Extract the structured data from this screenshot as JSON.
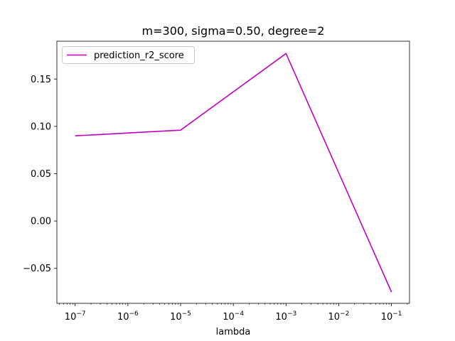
{
  "chart_data": {
    "type": "line",
    "title": "m=300, sigma=0.50, degree=2",
    "xlabel": "lambda",
    "ylabel": "",
    "xscale": "log",
    "x": [
      1e-07,
      1e-05,
      0.001,
      0.1
    ],
    "series": [
      {
        "name": "prediction_r2_score",
        "color": "#bf00bf",
        "values": [
          0.09,
          0.096,
          0.177,
          -0.075
        ]
      }
    ],
    "xlim": [
      4.5e-08,
      0.22
    ],
    "ylim": [
      -0.087,
      0.19
    ],
    "xticks": [
      {
        "base": "10",
        "exp": "−7",
        "value": 1e-07
      },
      {
        "base": "10",
        "exp": "−6",
        "value": 1e-06
      },
      {
        "base": "10",
        "exp": "−5",
        "value": 1e-05
      },
      {
        "base": "10",
        "exp": "−4",
        "value": 0.0001
      },
      {
        "base": "10",
        "exp": "−3",
        "value": 0.001
      },
      {
        "base": "10",
        "exp": "−2",
        "value": 0.01
      },
      {
        "base": "10",
        "exp": "−1",
        "value": 0.1
      }
    ],
    "yticks": [
      {
        "label": "−0.05",
        "value": -0.05
      },
      {
        "label": "0.00",
        "value": 0.0
      },
      {
        "label": "0.05",
        "value": 0.05
      },
      {
        "label": "0.10",
        "value": 0.1
      },
      {
        "label": "0.15",
        "value": 0.15
      }
    ],
    "grid": false,
    "legend": "upper left"
  }
}
